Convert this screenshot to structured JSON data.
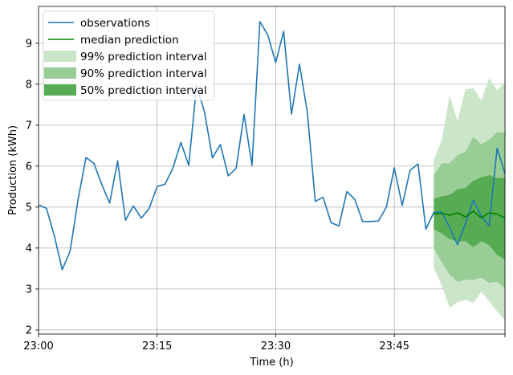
{
  "chart_data": {
    "type": "line",
    "xlabel": "Time (h)",
    "ylabel": "Production (kWh)",
    "xlim": [
      0,
      59
    ],
    "ylim": [
      1.9,
      9.9
    ],
    "x_ticks": [
      {
        "value": 0,
        "label": "23:00"
      },
      {
        "value": 15,
        "label": "23:15"
      },
      {
        "value": 30,
        "label": "23:30"
      },
      {
        "value": 45,
        "label": "23:45"
      },
      {
        "value": 59,
        "label": ""
      }
    ],
    "y_ticks": [
      2,
      3,
      4,
      5,
      6,
      7,
      8,
      9
    ],
    "grid": true,
    "legend_position": "top-left",
    "series": [
      {
        "name": "observations",
        "type": "line",
        "color": "#1f77b4",
        "x": [
          0,
          1,
          2,
          3,
          4,
          5,
          6,
          7,
          8,
          9,
          10,
          11,
          12,
          13,
          14,
          15,
          16,
          17,
          18,
          19,
          20,
          21,
          22,
          23,
          24,
          25,
          26,
          27,
          28,
          29,
          30,
          31,
          32,
          33,
          34,
          35,
          36,
          37,
          38,
          39,
          40,
          41,
          42,
          43,
          44,
          45,
          46,
          47,
          48,
          49,
          50,
          51,
          52,
          53,
          54,
          55,
          56,
          57,
          58,
          59
        ],
        "values": [
          5.05,
          4.97,
          4.3,
          3.47,
          3.93,
          5.18,
          6.21,
          6.07,
          5.55,
          5.1,
          6.13,
          4.68,
          5.03,
          4.73,
          4.97,
          5.5,
          5.56,
          5.95,
          6.58,
          6.02,
          7.97,
          7.32,
          6.2,
          6.53,
          5.76,
          5.95,
          7.26,
          6.02,
          9.53,
          9.2,
          8.53,
          9.29,
          7.27,
          8.49,
          7.32,
          5.14,
          5.24,
          4.62,
          4.54,
          5.38,
          5.19,
          4.65,
          4.65,
          4.66,
          5.0,
          5.96,
          5.04,
          5.9,
          6.05,
          4.46,
          4.87,
          4.88,
          4.5,
          4.08,
          4.6,
          5.17,
          4.78,
          4.54,
          6.44,
          5.82
        ]
      },
      {
        "name": "median prediction",
        "type": "line",
        "color": "#008000",
        "x": [
          50,
          51,
          52,
          53,
          54,
          55,
          56,
          57,
          58,
          59
        ],
        "values": [
          4.83,
          4.85,
          4.8,
          4.86,
          4.76,
          4.9,
          4.74,
          4.86,
          4.83,
          4.73
        ]
      }
    ],
    "intervals": [
      {
        "name": "99% prediction interval",
        "color": "#cbe5c9",
        "x": [
          50,
          51,
          52,
          53,
          54,
          55,
          56,
          57,
          58,
          59
        ],
        "lower": [
          3.52,
          3.08,
          2.54,
          2.68,
          2.74,
          2.66,
          2.93,
          2.7,
          2.45,
          2.24
        ],
        "upper": [
          6.15,
          6.63,
          7.73,
          7.1,
          7.88,
          7.9,
          7.6,
          8.15,
          7.85,
          8.05
        ]
      },
      {
        "name": "90% prediction interval",
        "color": "#98cd95",
        "x": [
          50,
          51,
          52,
          53,
          54,
          55,
          56,
          57,
          58,
          59
        ],
        "lower": [
          4.0,
          3.65,
          3.35,
          3.18,
          3.23,
          3.22,
          3.28,
          3.15,
          3.18,
          3.02
        ],
        "upper": [
          5.78,
          6.06,
          6.07,
          6.27,
          6.35,
          6.72,
          6.53,
          6.65,
          6.83,
          6.82
        ]
      },
      {
        "name": "50% prediction interval",
        "color": "#56ab53",
        "x": [
          50,
          51,
          52,
          53,
          54,
          55,
          56,
          57,
          58,
          59
        ],
        "lower": [
          4.46,
          4.36,
          4.22,
          4.16,
          4.17,
          4.02,
          4.17,
          4.07,
          3.83,
          3.72
        ],
        "upper": [
          5.21,
          5.26,
          5.3,
          5.43,
          5.47,
          5.64,
          5.73,
          5.78,
          5.71,
          5.71
        ]
      }
    ]
  }
}
